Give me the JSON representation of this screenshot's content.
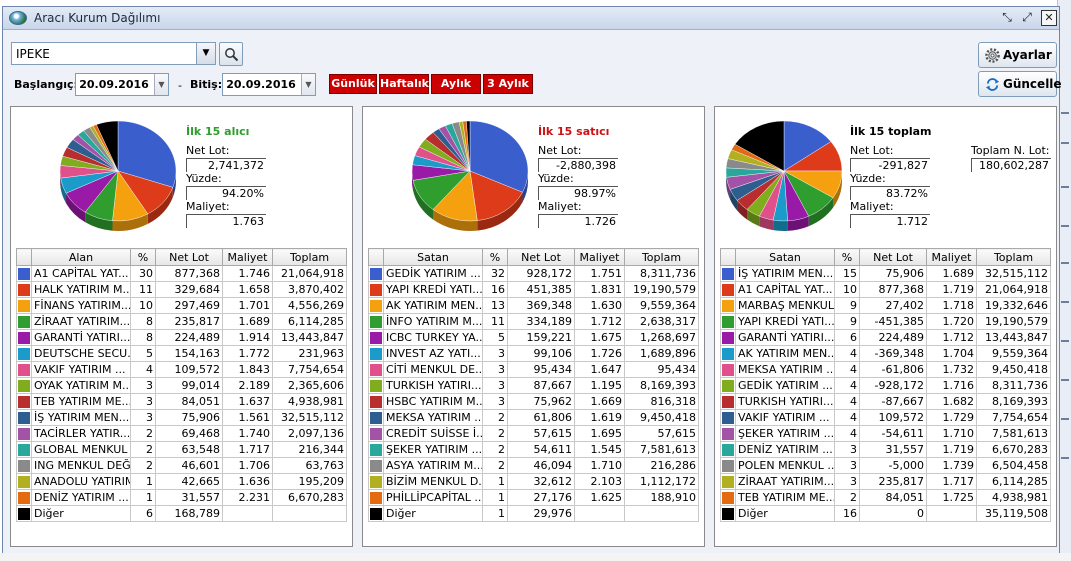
{
  "window": {
    "title": "Aracı Kurum Dağılımı"
  },
  "controls": {
    "symbol": "IPEKE",
    "start_label": "Başlangıç:",
    "start_date": "20.09.2016",
    "sep": "-",
    "end_label": "Bitiş:",
    "end_date": "20.09.2016",
    "periods": [
      "Günlük",
      "Haftalık",
      "Aylık",
      "3 Aylık"
    ],
    "settings_label": "Ayarlar",
    "refresh_label": "Güncelle"
  },
  "colors": {
    "title_buy": "#2e9e2e",
    "title_sell": "#cc1111",
    "period_bg": "#cc0000"
  },
  "panels": [
    {
      "title": "İlk 15 alıcı",
      "title_color": "#2e9e2e",
      "net_lot_label": "Net Lot:",
      "net_lot": "2,741,372",
      "pct_label": "Yüzde:",
      "pct": "94.20%",
      "cost_label": "Maliyet:",
      "cost": "1.763",
      "headers": [
        "",
        "Alan",
        "%",
        "Net Lot",
        "Maliyet",
        "Toplam"
      ],
      "rows": [
        {
          "color": "#3a5fcd",
          "name": "A1 CAPİTAL YAT...",
          "pct": "30",
          "lot": "877,368",
          "cost": "1.746",
          "total": "21,064,918"
        },
        {
          "color": "#dd3b1a",
          "name": "HALK YATIRIM M...",
          "pct": "11",
          "lot": "329,684",
          "cost": "1.658",
          "total": "3,870,402"
        },
        {
          "color": "#f5a00f",
          "name": "FİNANS YATIRIM...",
          "pct": "10",
          "lot": "297,469",
          "cost": "1.701",
          "total": "4,556,269"
        },
        {
          "color": "#2f9e2f",
          "name": "ZİRAAT YATIRIM...",
          "pct": "8",
          "lot": "235,817",
          "cost": "1.689",
          "total": "6,114,285"
        },
        {
          "color": "#9a1aa8",
          "name": "GARANTİ YATIRI...",
          "pct": "8",
          "lot": "224,489",
          "cost": "1.914",
          "total": "13,443,847"
        },
        {
          "color": "#1a9bc9",
          "name": "DEUTSCHE SECU...",
          "pct": "5",
          "lot": "154,163",
          "cost": "1.772",
          "total": "231,963"
        },
        {
          "color": "#e0508a",
          "name": "VAKIF YATIRIM ...",
          "pct": "4",
          "lot": "109,572",
          "cost": "1.843",
          "total": "7,754,654"
        },
        {
          "color": "#7fad1d",
          "name": "OYAK YATIRIM M...",
          "pct": "3",
          "lot": "99,014",
          "cost": "2.189",
          "total": "2,365,606"
        },
        {
          "color": "#b82e2e",
          "name": "TEB YATIRIM ME...",
          "pct": "3",
          "lot": "84,051",
          "cost": "1.637",
          "total": "4,938,981"
        },
        {
          "color": "#2e5e90",
          "name": "İŞ YATIRIM  MEN...",
          "pct": "3",
          "lot": "75,906",
          "cost": "1.561",
          "total": "32,515,112"
        },
        {
          "color": "#a253a8",
          "name": "TACİRLER YATIR...",
          "pct": "2",
          "lot": "69,468",
          "cost": "1.740",
          "total": "2,097,136"
        },
        {
          "color": "#2aa79b",
          "name": "GLOBAL MENKUL ...",
          "pct": "2",
          "lot": "63,548",
          "cost": "1.717",
          "total": "216,344"
        },
        {
          "color": "#8a8a8a",
          "name": "ING MENKUL DEĞ...",
          "pct": "2",
          "lot": "46,601",
          "cost": "1.706",
          "total": "63,763"
        },
        {
          "color": "#b0b020",
          "name": "ANADOLU YATIRIM...",
          "pct": "1",
          "lot": "42,665",
          "cost": "1.636",
          "total": "195,209"
        },
        {
          "color": "#e36a10",
          "name": "DENİZ YATIRIM ...",
          "pct": "1",
          "lot": "31,557",
          "cost": "2.231",
          "total": "6,670,283"
        },
        {
          "color": "#000000",
          "name": "Diğer",
          "pct": "6",
          "lot": "168,789",
          "cost": "",
          "total": ""
        }
      ]
    },
    {
      "title": "İlk 15 satıcı",
      "title_color": "#cc1111",
      "net_lot_label": "Net Lot:",
      "net_lot": "-2,880,398",
      "pct_label": "Yüzde:",
      "pct": "98.97%",
      "cost_label": "Maliyet:",
      "cost": "1.726",
      "headers": [
        "",
        "Satan",
        "%",
        "Net Lot",
        "Maliyet",
        "Toplam"
      ],
      "rows": [
        {
          "color": "#3a5fcd",
          "name": "GEDİK YATIRIM ...",
          "pct": "32",
          "lot": "928,172",
          "cost": "1.751",
          "total": "8,311,736"
        },
        {
          "color": "#dd3b1a",
          "name": "YAPI KREDİ YATI...",
          "pct": "16",
          "lot": "451,385",
          "cost": "1.831",
          "total": "19,190,579"
        },
        {
          "color": "#f5a00f",
          "name": "AK YATIRIM MEN...",
          "pct": "13",
          "lot": "369,348",
          "cost": "1.630",
          "total": "9,559,364"
        },
        {
          "color": "#2f9e2f",
          "name": "İNFO YATIRIM M...",
          "pct": "11",
          "lot": "334,189",
          "cost": "1.712",
          "total": "2,638,317"
        },
        {
          "color": "#9a1aa8",
          "name": "ICBC TURKEY YA...",
          "pct": "5",
          "lot": "159,221",
          "cost": "1.675",
          "total": "1,268,697"
        },
        {
          "color": "#1a9bc9",
          "name": "INVEST AZ YATI...",
          "pct": "3",
          "lot": "99,106",
          "cost": "1.726",
          "total": "1,689,896"
        },
        {
          "color": "#e0508a",
          "name": "CİTİ MENKUL DE...",
          "pct": "3",
          "lot": "95,434",
          "cost": "1.647",
          "total": "95,434"
        },
        {
          "color": "#7fad1d",
          "name": "TURKISH YATIRI...",
          "pct": "3",
          "lot": "87,667",
          "cost": "1.195",
          "total": "8,169,393"
        },
        {
          "color": "#b82e2e",
          "name": "HSBC YATIRIM M...",
          "pct": "3",
          "lot": "75,962",
          "cost": "1.669",
          "total": "816,318"
        },
        {
          "color": "#2e5e90",
          "name": "MEKSA YATIRIM ...",
          "pct": "2",
          "lot": "61,806",
          "cost": "1.619",
          "total": "9,450,418"
        },
        {
          "color": "#a253a8",
          "name": "CREDİT SUİSSE İ...",
          "pct": "2",
          "lot": "57,615",
          "cost": "1.695",
          "total": "57,615"
        },
        {
          "color": "#2aa79b",
          "name": "ŞEKER YATIRIM ...",
          "pct": "2",
          "lot": "54,611",
          "cost": "1.545",
          "total": "7,581,613"
        },
        {
          "color": "#8a8a8a",
          "name": "ASYA YATIRIM M...",
          "pct": "2",
          "lot": "46,094",
          "cost": "1.710",
          "total": "216,286"
        },
        {
          "color": "#b0b020",
          "name": "BİZİM MENKUL D...",
          "pct": "1",
          "lot": "32,612",
          "cost": "2.103",
          "total": "1,112,172"
        },
        {
          "color": "#e36a10",
          "name": "PHİLLİPCAPİTAL ...",
          "pct": "1",
          "lot": "27,176",
          "cost": "1.625",
          "total": "188,910"
        },
        {
          "color": "#000000",
          "name": "Diğer",
          "pct": "1",
          "lot": "29,976",
          "cost": "",
          "total": ""
        }
      ]
    },
    {
      "title": "İlk 15 toplam",
      "title_color": "#000000",
      "net_lot_label": "Net Lot:",
      "net_lot": "-291,827",
      "pct_label": "Yüzde:",
      "pct": "83.72%",
      "cost_label": "Maliyet:",
      "cost": "1.712",
      "total_lot_label": "Toplam N. Lot:",
      "total_lot": "180,602,287",
      "headers": [
        "",
        "Satan",
        "%",
        "Net Lot",
        "Maliyet",
        "Toplam"
      ],
      "rows": [
        {
          "color": "#3a5fcd",
          "name": "İŞ YATIRIM  MEN...",
          "pct": "15",
          "lot": "75,906",
          "cost": "1.689",
          "total": "32,515,112"
        },
        {
          "color": "#dd3b1a",
          "name": "A1 CAPİTAL YAT...",
          "pct": "10",
          "lot": "877,368",
          "cost": "1.719",
          "total": "21,064,918"
        },
        {
          "color": "#f5a00f",
          "name": "MARBAŞ MENKUL...",
          "pct": "9",
          "lot": "27,402",
          "cost": "1.718",
          "total": "19,332,646"
        },
        {
          "color": "#2f9e2f",
          "name": "YAPI KREDİ YATI...",
          "pct": "9",
          "lot": "-451,385",
          "cost": "1.720",
          "total": "19,190,579"
        },
        {
          "color": "#9a1aa8",
          "name": "GARANTİ YATIRI...",
          "pct": "6",
          "lot": "224,489",
          "cost": "1.712",
          "total": "13,443,847"
        },
        {
          "color": "#1a9bc9",
          "name": "AK YATIRIM MEN...",
          "pct": "4",
          "lot": "-369,348",
          "cost": "1.704",
          "total": "9,559,364"
        },
        {
          "color": "#e0508a",
          "name": "MEKSA YATIRIM ...",
          "pct": "4",
          "lot": "-61,806",
          "cost": "1.732",
          "total": "9,450,418"
        },
        {
          "color": "#7fad1d",
          "name": "GEDİK YATIRIM ...",
          "pct": "4",
          "lot": "-928,172",
          "cost": "1.716",
          "total": "8,311,736"
        },
        {
          "color": "#b82e2e",
          "name": "TURKISH YATIRI...",
          "pct": "4",
          "lot": "-87,667",
          "cost": "1.682",
          "total": "8,169,393"
        },
        {
          "color": "#2e5e90",
          "name": "VAKIF YATIRIM ...",
          "pct": "4",
          "lot": "109,572",
          "cost": "1.729",
          "total": "7,754,654"
        },
        {
          "color": "#a253a8",
          "name": "ŞEKER YATIRIM ...",
          "pct": "4",
          "lot": "-54,611",
          "cost": "1.710",
          "total": "7,581,613"
        },
        {
          "color": "#2aa79b",
          "name": "DENİZ YATIRIM ...",
          "pct": "3",
          "lot": "31,557",
          "cost": "1.719",
          "total": "6,670,283"
        },
        {
          "color": "#8a8a8a",
          "name": "POLEN MENKUL ...",
          "pct": "3",
          "lot": "-5,000",
          "cost": "1.739",
          "total": "6,504,458"
        },
        {
          "color": "#b0b020",
          "name": "ZİRAAT YATIRIM...",
          "pct": "3",
          "lot": "235,817",
          "cost": "1.717",
          "total": "6,114,285"
        },
        {
          "color": "#e36a10",
          "name": "TEB YATIRIM ME...",
          "pct": "2",
          "lot": "84,051",
          "cost": "1.725",
          "total": "4,938,981"
        },
        {
          "color": "#000000",
          "name": "Diğer",
          "pct": "16",
          "lot": "0",
          "cost": "",
          "total": "35,119,508"
        }
      ]
    }
  ],
  "chart_data": [
    {
      "type": "pie",
      "labels": [
        "A1 CAPİTAL YAT...",
        "HALK YATIRIM M...",
        "FİNANS YATIRIM...",
        "ZİRAAT YATIRIM...",
        "GARANTİ YATIRI...",
        "DEUTSCHE SECU...",
        "VAKIF YATIRIM ...",
        "OYAK YATIRIM M...",
        "TEB YATIRIM ME...",
        "İŞ YATIRIM  MEN...",
        "TACİRLER YATIR...",
        "GLOBAL MENKUL ...",
        "ING MENKUL DEĞ...",
        "ANADOLU YATIRIM...",
        "DENİZ YATIRIM ...",
        "Diğer"
      ],
      "values": [
        30,
        11,
        10,
        8,
        8,
        5,
        4,
        3,
        3,
        3,
        2,
        2,
        2,
        1,
        1,
        6
      ],
      "colors": [
        "#3a5fcd",
        "#dd3b1a",
        "#f5a00f",
        "#2f9e2f",
        "#9a1aa8",
        "#1a9bc9",
        "#e0508a",
        "#7fad1d",
        "#b82e2e",
        "#2e5e90",
        "#a253a8",
        "#2aa79b",
        "#8a8a8a",
        "#b0b020",
        "#e36a10",
        "#000000"
      ],
      "start": "top"
    },
    {
      "type": "pie",
      "labels": [
        "GEDİK YATIRIM ...",
        "YAPI KREDİ YATI...",
        "AK YATIRIM MEN...",
        "İNFO YATIRIM M...",
        "ICBC TURKEY YA...",
        "INVEST AZ YATI...",
        "CİTİ MENKUL DE...",
        "TURKISH YATIRI...",
        "HSBC YATIRIM M...",
        "MEKSA YATIRIM ...",
        "CREDİT SUİSSE İ...",
        "ŞEKER YATIRIM ...",
        "ASYA YATIRIM M...",
        "BİZİM MENKUL D...",
        "PHİLLİPCAPİTAL ...",
        "Diğer"
      ],
      "values": [
        32,
        16,
        13,
        11,
        5,
        3,
        3,
        3,
        3,
        2,
        2,
        2,
        2,
        1,
        1,
        1
      ],
      "colors": [
        "#3a5fcd",
        "#dd3b1a",
        "#f5a00f",
        "#2f9e2f",
        "#9a1aa8",
        "#1a9bc9",
        "#e0508a",
        "#7fad1d",
        "#b82e2e",
        "#2e5e90",
        "#a253a8",
        "#2aa79b",
        "#8a8a8a",
        "#b0b020",
        "#e36a10",
        "#000000"
      ],
      "start": "top"
    },
    {
      "type": "pie",
      "labels": [
        "İŞ YATIRIM  MEN...",
        "A1 CAPİTAL YAT...",
        "MARBAŞ MENKUL...",
        "YAPI KREDİ YATI...",
        "GARANTİ YATIRI...",
        "AK YATIRIM MEN...",
        "MEKSA YATIRIM ...",
        "GEDİK YATIRIM ...",
        "TURKISH YATIRI...",
        "VAKIF YATIRIM ...",
        "ŞEKER YATIRIM ...",
        "DENİZ YATIRIM ...",
        "POLEN MENKUL ...",
        "ZİRAAT YATIRIM...",
        "TEB YATIRIM ME...",
        "Diğer"
      ],
      "values": [
        15,
        10,
        9,
        9,
        6,
        4,
        4,
        4,
        4,
        4,
        4,
        3,
        3,
        3,
        2,
        16
      ],
      "colors": [
        "#3a5fcd",
        "#dd3b1a",
        "#f5a00f",
        "#2f9e2f",
        "#9a1aa8",
        "#1a9bc9",
        "#e0508a",
        "#7fad1d",
        "#b82e2e",
        "#2e5e90",
        "#a253a8",
        "#2aa79b",
        "#8a8a8a",
        "#b0b020",
        "#e36a10",
        "#000000"
      ],
      "start": "top"
    }
  ]
}
